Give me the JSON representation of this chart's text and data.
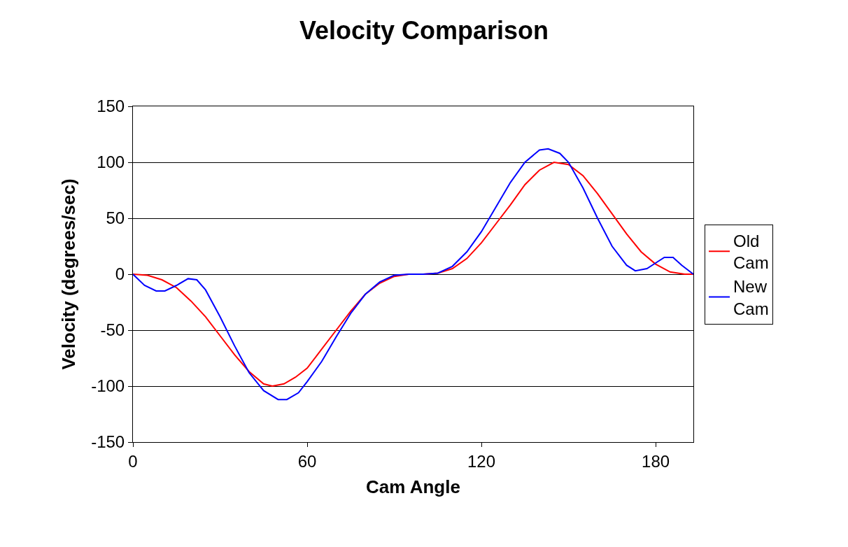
{
  "chart_data": {
    "type": "line",
    "title": "Velocity Comparison",
    "xlabel": "Cam Angle",
    "ylabel": "Velocity (degrees/sec)",
    "xlim": [
      0,
      193
    ],
    "xticks": [
      0,
      60,
      120,
      180
    ],
    "ylim": [
      -150,
      150
    ],
    "yticks": [
      -150,
      -100,
      -50,
      0,
      50,
      100,
      150
    ],
    "grid": "y",
    "legend": "right",
    "marker": "none",
    "line_style": "solid",
    "series": [
      {
        "name": "Old Cam",
        "color": "#ff0000",
        "x": [
          0,
          5,
          10,
          15,
          20,
          25,
          30,
          35,
          40,
          45,
          48,
          52,
          56,
          60,
          65,
          70,
          75,
          80,
          85,
          90,
          95,
          100,
          105,
          110,
          115,
          120,
          125,
          130,
          135,
          140,
          145,
          150,
          155,
          160,
          165,
          170,
          175,
          180,
          185,
          190,
          193
        ],
        "values": [
          0,
          -1,
          -5,
          -12,
          -24,
          -38,
          -55,
          -72,
          -87,
          -98,
          -100,
          -98,
          -92,
          -84,
          -67,
          -50,
          -33,
          -18,
          -8,
          -2,
          0,
          0,
          1,
          5,
          14,
          28,
          45,
          62,
          80,
          93,
          100,
          98,
          88,
          72,
          54,
          36,
          20,
          9,
          2,
          0,
          0
        ]
      },
      {
        "name": "New Cam",
        "color": "#0000ff",
        "x": [
          0,
          4,
          8,
          11,
          15,
          19,
          22,
          25,
          30,
          35,
          40,
          45,
          50,
          53,
          57,
          60,
          65,
          70,
          75,
          80,
          85,
          90,
          95,
          100,
          105,
          110,
          115,
          120,
          125,
          130,
          135,
          140,
          143,
          147,
          150,
          155,
          160,
          165,
          170,
          173,
          177,
          180,
          183,
          186,
          189,
          193
        ],
        "values": [
          0,
          -10,
          -15,
          -15,
          -10,
          -4,
          -5,
          -14,
          -38,
          -64,
          -88,
          -104,
          -112,
          -112,
          -106,
          -96,
          -78,
          -56,
          -35,
          -18,
          -7,
          -1,
          0,
          0,
          1,
          7,
          20,
          38,
          60,
          82,
          100,
          111,
          112,
          108,
          100,
          77,
          50,
          25,
          8,
          3,
          5,
          10,
          15,
          15,
          8,
          0
        ]
      }
    ]
  }
}
